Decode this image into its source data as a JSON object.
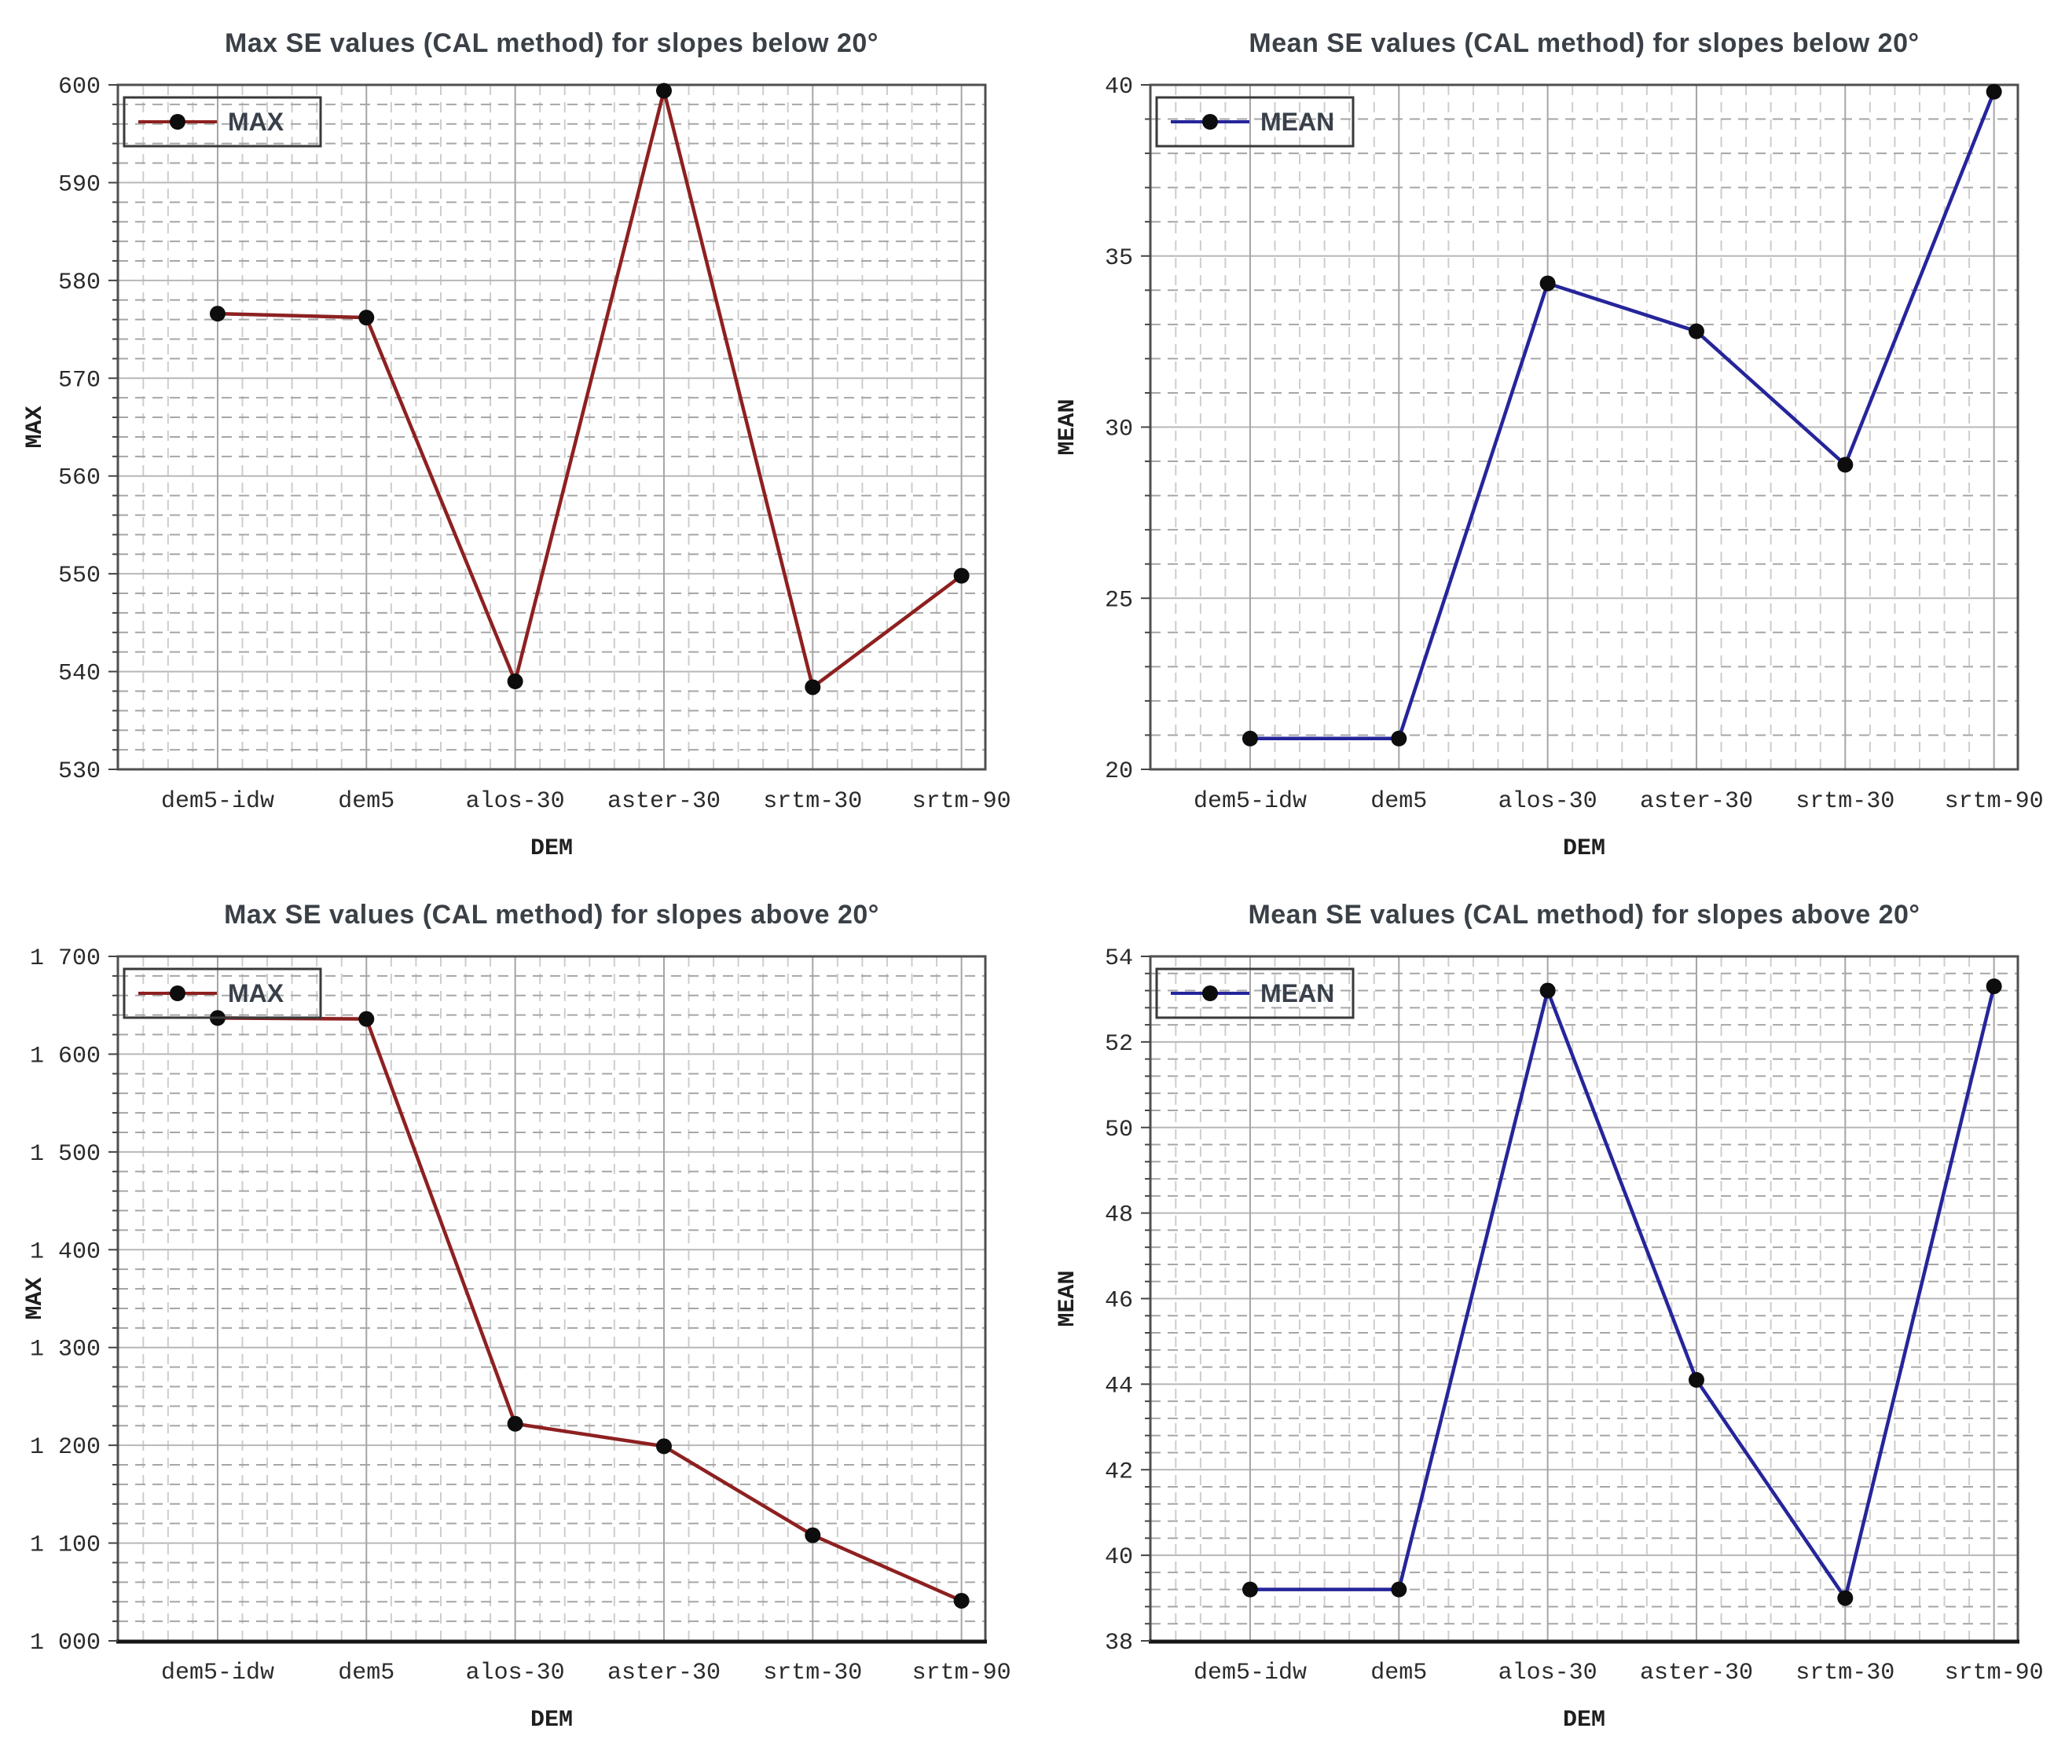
{
  "page": {
    "background": "#ffffff",
    "xlabel": "DEM",
    "categories": [
      "dem5-idw",
      "dem5",
      "alos-30",
      "aster-30",
      "srtm-30",
      "srtm-90"
    ]
  },
  "style": {
    "marker_color": "#0d0d0d",
    "frame_color": "#4f4f4f",
    "major_grid_color": "#b7b7b7",
    "category_grid_color": "#a5a5a5",
    "minor_hgrid_color": "#a6a6a6",
    "minor_vgrid_color": "#cdcdcd",
    "tick_color": "#444444",
    "title_color": "#3a4046",
    "max_series_color": "#8e2020",
    "mean_series_color": "#25259a"
  },
  "chart_data": [
    {
      "type": "line",
      "title": "Max SE values (CAL method) for slopes below 20°",
      "legend": "MAX",
      "legend_position": "top-left",
      "series_color": "#8e2020",
      "xlabel": "DEM",
      "ylabel": "MAX",
      "categories": [
        "dem5-idw",
        "dem5",
        "alos-30",
        "aster-30",
        "srtm-30",
        "srtm-90"
      ],
      "values": [
        576.6,
        576.2,
        539.0,
        599.4,
        538.4,
        549.8
      ],
      "ylim": [
        530,
        600
      ],
      "ytick_major": 10,
      "ytick_minor": 2,
      "grid": "major-solid minor-dashed",
      "thousands_space": true,
      "thick_bottom": false
    },
    {
      "type": "line",
      "title": "Mean SE values (CAL method) for slopes below 20°",
      "legend": "MEAN",
      "legend_position": "top-left",
      "series_color": "#25259a",
      "xlabel": "DEM",
      "ylabel": "MEAN",
      "categories": [
        "dem5-idw",
        "dem5",
        "alos-30",
        "aster-30",
        "srtm-30",
        "srtm-90"
      ],
      "values": [
        20.9,
        20.9,
        34.2,
        32.8,
        28.9,
        39.8
      ],
      "ylim": [
        20,
        40
      ],
      "ytick_major": 5,
      "ytick_minor": 1,
      "grid": "major-solid minor-dashed",
      "thousands_space": true,
      "thick_bottom": false
    },
    {
      "type": "line",
      "title": "Max SE values (CAL method) for slopes above 20°",
      "legend": "MAX",
      "legend_position": "top-left",
      "series_color": "#8e2020",
      "xlabel": "DEM",
      "ylabel": "MAX",
      "categories": [
        "dem5-idw",
        "dem5",
        "alos-30",
        "aster-30",
        "srtm-30",
        "srtm-90"
      ],
      "values": [
        1637,
        1636,
        1222,
        1199,
        1108,
        1041
      ],
      "ylim": [
        1000,
        1700
      ],
      "ytick_major": 100,
      "ytick_minor": 20,
      "grid": "major-solid minor-dashed",
      "thousands_space": true,
      "thick_bottom": true
    },
    {
      "type": "line",
      "title": "Mean SE values (CAL method) for slopes above 20°",
      "legend": "MEAN",
      "legend_position": "top-left",
      "series_color": "#25259a",
      "xlabel": "DEM",
      "ylabel": "MEAN",
      "categories": [
        "dem5-idw",
        "dem5",
        "alos-30",
        "aster-30",
        "srtm-30",
        "srtm-90"
      ],
      "values": [
        39.2,
        39.2,
        53.2,
        44.1,
        39.0,
        53.3
      ],
      "ylim": [
        38,
        54
      ],
      "ytick_major": 2,
      "ytick_minor": 0.4,
      "grid": "major-solid minor-dashed",
      "thousands_space": true,
      "thick_bottom": true
    }
  ]
}
